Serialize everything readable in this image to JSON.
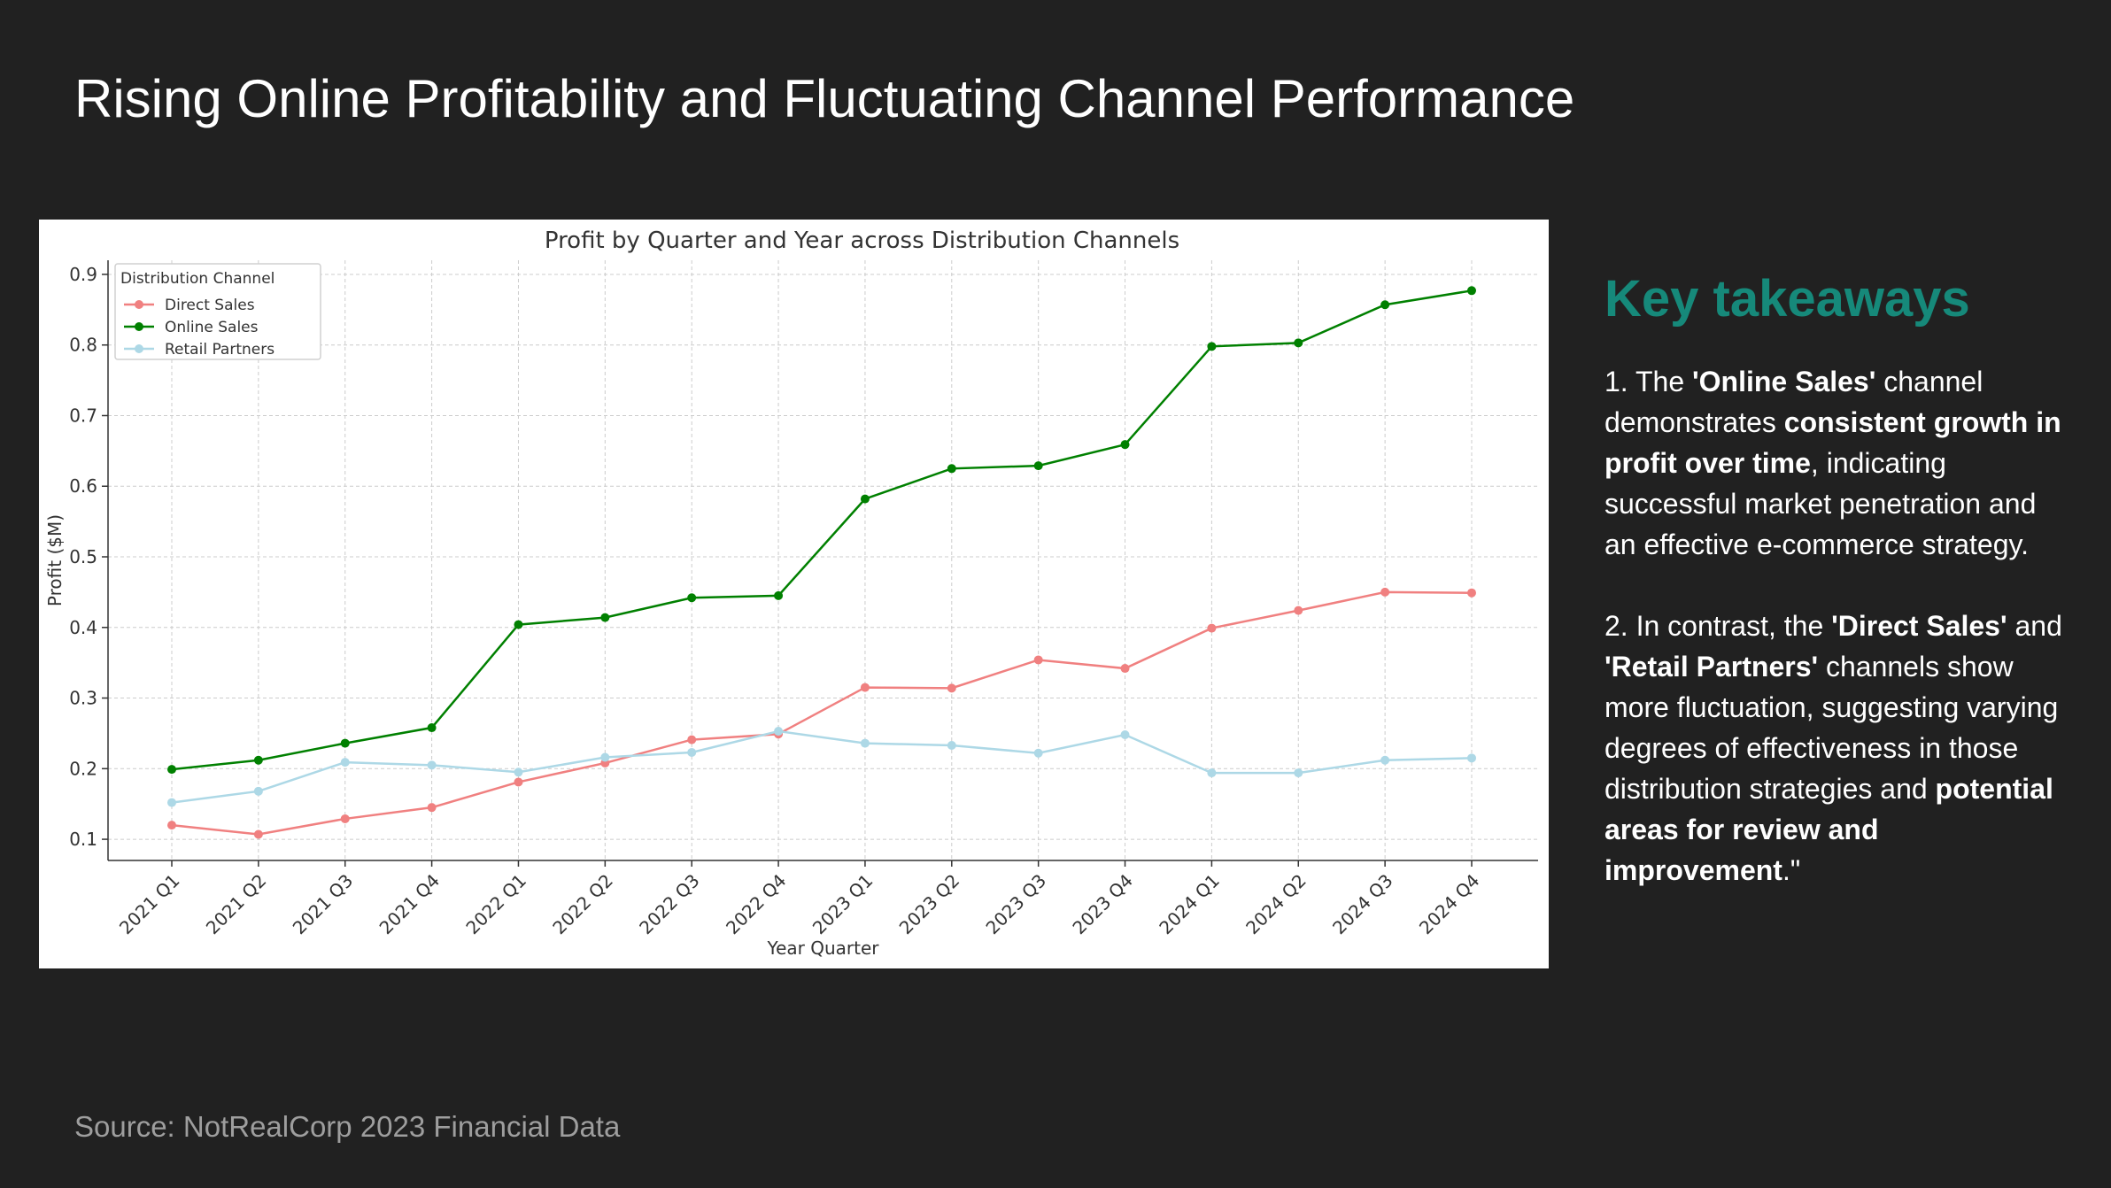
{
  "title": "Rising Online Profitability and Fluctuating Channel Performance",
  "source": "Source: NotRealCorp 2023 Financial Data",
  "takeaways": {
    "heading": "Key takeaways",
    "items": [
      {
        "segments": [
          {
            "text": "1. The ",
            "bold": false
          },
          {
            "text": "'Online Sales'",
            "bold": true
          },
          {
            "text": " channel demonstrates ",
            "bold": false
          },
          {
            "text": "consistent growth in profit over time",
            "bold": true
          },
          {
            "text": ", indicating successful market penetration and an effective e-commerce strategy.",
            "bold": false
          }
        ]
      },
      {
        "segments": [
          {
            "text": "2. In contrast, the ",
            "bold": false
          },
          {
            "text": "'Direct Sales'",
            "bold": true
          },
          {
            "text": " and ",
            "bold": false
          },
          {
            "text": "'Retail Partners'",
            "bold": true
          },
          {
            "text": " channels show more fluctuation, suggesting varying degrees of effectiveness in those distribution strategies and ",
            "bold": false
          },
          {
            "text": "potential areas for review and improvement",
            "bold": true
          },
          {
            "text": ".\"",
            "bold": false
          }
        ]
      }
    ]
  },
  "chart_data": {
    "type": "line",
    "title": "Profit by Quarter and Year across Distribution Channels",
    "xlabel": "Year Quarter",
    "ylabel": "Profit ($M)",
    "ylim": [
      0.07,
      0.92
    ],
    "yticks": [
      0.1,
      0.2,
      0.3,
      0.4,
      0.5,
      0.6,
      0.7,
      0.8,
      0.9
    ],
    "grid": true,
    "legend": {
      "title": "Distribution Channel",
      "position": "top-left"
    },
    "categories": [
      "2021 Q1",
      "2021 Q2",
      "2021 Q3",
      "2021 Q4",
      "2022 Q1",
      "2022 Q2",
      "2022 Q3",
      "2022 Q4",
      "2023 Q1",
      "2023 Q2",
      "2023 Q3",
      "2023 Q4",
      "2024 Q1",
      "2024 Q2",
      "2024 Q3",
      "2024 Q4"
    ],
    "series": [
      {
        "name": "Direct Sales",
        "color": "#f08080",
        "values": [
          0.12,
          0.107,
          0.129,
          0.145,
          0.181,
          0.208,
          0.241,
          0.249,
          0.315,
          0.314,
          0.354,
          0.342,
          0.399,
          0.424,
          0.45,
          0.449
        ]
      },
      {
        "name": "Online Sales",
        "color": "#008000",
        "values": [
          0.199,
          0.212,
          0.236,
          0.258,
          0.404,
          0.414,
          0.442,
          0.445,
          0.582,
          0.625,
          0.629,
          0.659,
          0.798,
          0.803,
          0.857,
          0.877
        ]
      },
      {
        "name": "Retail Partners",
        "color": "#add8e6",
        "values": [
          0.152,
          0.168,
          0.209,
          0.205,
          0.195,
          0.216,
          0.223,
          0.253,
          0.236,
          0.233,
          0.222,
          0.248,
          0.194,
          0.194,
          0.212,
          0.215
        ]
      }
    ]
  }
}
